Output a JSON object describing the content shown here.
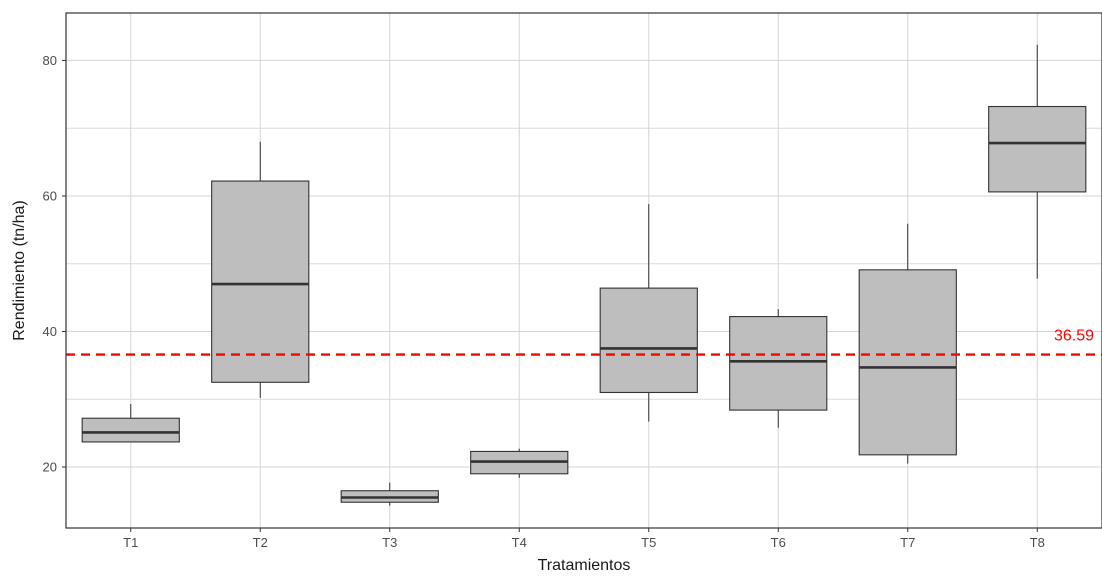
{
  "chart_data": {
    "type": "boxplot",
    "xlabel": "Tratamientos",
    "ylabel": "Rendimiento (tn/ha)",
    "categories": [
      "T1",
      "T2",
      "T3",
      "T4",
      "T5",
      "T6",
      "T7",
      "T8"
    ],
    "boxes": [
      {
        "category": "T1",
        "min": 23.7,
        "q1": 23.7,
        "median": 25.1,
        "q3": 27.2,
        "max": 29.3
      },
      {
        "category": "T2",
        "min": 30.2,
        "q1": 32.5,
        "median": 47.0,
        "q3": 62.2,
        "max": 68.0
      },
      {
        "category": "T3",
        "min": 14.3,
        "q1": 14.8,
        "median": 15.5,
        "q3": 16.5,
        "max": 17.7
      },
      {
        "category": "T4",
        "min": 18.4,
        "q1": 19.0,
        "median": 20.8,
        "q3": 22.3,
        "max": 22.7
      },
      {
        "category": "T5",
        "min": 26.7,
        "q1": 31.0,
        "median": 37.5,
        "q3": 46.4,
        "max": 58.8
      },
      {
        "category": "T6",
        "min": 25.8,
        "q1": 28.4,
        "median": 35.6,
        "q3": 42.2,
        "max": 43.3
      },
      {
        "category": "T7",
        "min": 20.5,
        "q1": 21.8,
        "median": 34.7,
        "q3": 49.1,
        "max": 55.9
      },
      {
        "category": "T8",
        "min": 47.8,
        "q1": 60.6,
        "median": 67.8,
        "q3": 73.2,
        "max": 82.3
      }
    ],
    "yticks": [
      20,
      40,
      60,
      80
    ],
    "ylim": [
      11,
      87
    ],
    "reference_line": {
      "value": 36.59,
      "label": "36.59",
      "color": "#ff0000",
      "style": "dashed"
    },
    "grid": true,
    "box_fill": "#bebebe",
    "box_stroke": "#333333"
  }
}
